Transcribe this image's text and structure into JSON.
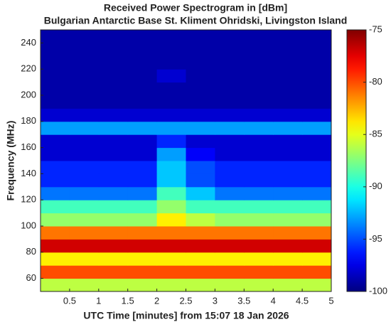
{
  "chart_data": {
    "type": "heatmap",
    "title": "Received Power Spectrogram in [dBm]",
    "subtitle": "Bulgarian Antarctic Base St. Kliment Ohridski, Livingston Island",
    "x_label": "UTC Time [minutes]  from 15:07 18 Jan 2026",
    "y_label": "Frequency (MHz)",
    "xlim": [
      0,
      5
    ],
    "xticks": [
      0.5,
      1,
      1.5,
      2,
      2.5,
      3,
      3.5,
      4,
      4.5,
      5
    ],
    "ylim": [
      50,
      250
    ],
    "yticks": [
      60,
      80,
      100,
      120,
      140,
      160,
      180,
      200,
      220,
      240
    ],
    "xbins": [
      0,
      0.5,
      1,
      1.5,
      2,
      2.5,
      3,
      3.5,
      4,
      4.5,
      5
    ],
    "ybins": [
      50,
      60,
      70,
      80,
      90,
      100,
      110,
      120,
      130,
      140,
      150,
      160,
      170,
      180,
      190,
      200,
      210,
      220,
      230,
      240,
      250
    ],
    "colormap": "jet",
    "clim": [
      -100,
      -75
    ],
    "cticks": [
      -75,
      -80,
      -85,
      -90,
      -95,
      -100
    ],
    "values": [
      [
        -86,
        -86,
        -86,
        -86,
        -86,
        -86,
        -86,
        -86,
        -86,
        -86
      ],
      [
        -80,
        -80,
        -80,
        -80,
        -80,
        -80,
        -80,
        -80,
        -80,
        -80
      ],
      [
        -84,
        -84,
        -84,
        -84,
        -84,
        -84,
        -84,
        -84,
        -84,
        -84
      ],
      [
        -77,
        -77,
        -77,
        -77,
        -77,
        -77,
        -77,
        -77,
        -77,
        -77
      ],
      [
        -81,
        -81,
        -81,
        -81,
        -81,
        -81,
        -81,
        -81,
        -81,
        -81
      ],
      [
        -87,
        -87,
        -87,
        -87,
        -84,
        -86,
        -87,
        -87,
        -87,
        -87
      ],
      [
        -89,
        -89,
        -89,
        -89,
        -87,
        -89,
        -89,
        -89,
        -89,
        -89
      ],
      [
        -94,
        -94,
        -94,
        -94,
        -89,
        -92,
        -94,
        -94,
        -94,
        -94
      ],
      [
        -96,
        -96,
        -96,
        -96,
        -92,
        -95,
        -96,
        -96,
        -96,
        -96
      ],
      [
        -96,
        -96,
        -96,
        -96,
        -92,
        -95,
        -96,
        -96,
        -96,
        -96
      ],
      [
        -98,
        -98,
        -98,
        -98,
        -93,
        -97,
        -98,
        -98,
        -98,
        -98
      ],
      [
        -98,
        -98,
        -98,
        -98,
        -96,
        -98,
        -98,
        -98,
        -98,
        -98
      ],
      [
        -93,
        -93,
        -93,
        -93,
        -93,
        -93,
        -93,
        -93,
        -93,
        -93
      ],
      [
        -98,
        -98,
        -98,
        -98,
        -98,
        -98,
        -98,
        -98,
        -98,
        -98
      ],
      [
        -99,
        -99,
        -99,
        -99,
        -99,
        -99,
        -99,
        -99,
        -99,
        -99
      ],
      [
        -99,
        -99,
        -99,
        -99,
        -99,
        -99,
        -99,
        -99,
        -99,
        -99
      ],
      [
        -99,
        -99,
        -99,
        -99,
        -98,
        -99,
        -99,
        -99,
        -99,
        -99
      ],
      [
        -99,
        -99,
        -99,
        -99,
        -99,
        -99,
        -99,
        -99,
        -99,
        -99
      ],
      [
        -99,
        -99,
        -99,
        -99,
        -99,
        -99,
        -99,
        -99,
        -99,
        -99
      ],
      [
        -99,
        -99,
        -99,
        -99,
        -99,
        -99,
        -99,
        -99,
        -99,
        -99
      ]
    ]
  }
}
